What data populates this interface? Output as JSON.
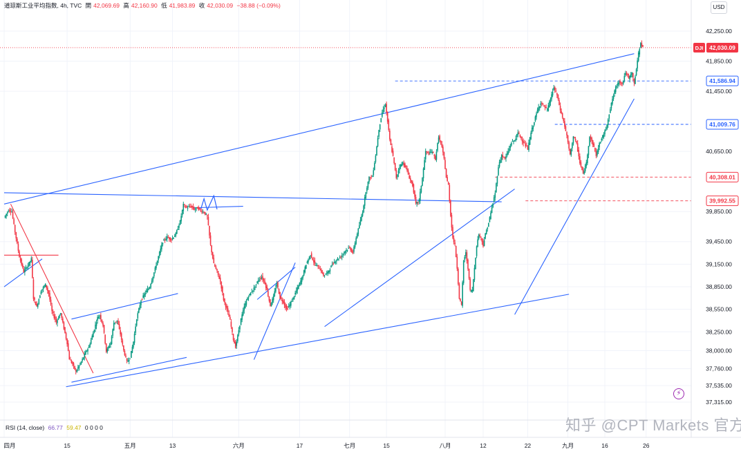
{
  "header": {
    "title": "道琼斯工业平均指数, 4h, TVC",
    "open_label": "開",
    "open": "42,069.69",
    "high_label": "高",
    "high": "42,160.90",
    "low_label": "低",
    "low": "41,983.89",
    "close_label": "收",
    "close": "42,030.09",
    "change": "−38.88 (−0.09%)"
  },
  "currency_button": "USD",
  "rsi_legend": {
    "label": "RSI (14, close)",
    "value1": "66.77",
    "value2": "59.47",
    "extra": "0 0 0 0"
  },
  "watermark": "知乎 @CPT Markets 官方",
  "watermark_icon": "lightning-icon",
  "colors": {
    "up": "#089981",
    "down": "#f23645",
    "trendline": "#2962ff",
    "downtrend": "#f23645",
    "price_tag": "#f23645",
    "level_tag": "#2962ff"
  },
  "chart_data": {
    "type": "candlestick",
    "symbol": "DJI",
    "y_range": [
      37150,
      42480
    ],
    "y_ticks": [
      {
        "value": 42250,
        "label": "42,250.00"
      },
      {
        "value": 41850,
        "label": "41,850.00"
      },
      {
        "value": 41450,
        "label": "41,450.00"
      },
      {
        "value": 40650,
        "label": "40,650.00"
      },
      {
        "value": 39850,
        "label": "39,850.00"
      },
      {
        "value": 39450,
        "label": "39,450.00"
      },
      {
        "value": 39150,
        "label": "39,150.00"
      },
      {
        "value": 38850,
        "label": "38,850.00"
      },
      {
        "value": 38550,
        "label": "38,550.00"
      },
      {
        "value": 38250,
        "label": "38,250.00"
      },
      {
        "value": 38000,
        "label": "38,000.00"
      },
      {
        "value": 37760,
        "label": "37,760.00"
      },
      {
        "value": 37535,
        "label": "37,535.00"
      },
      {
        "value": 37315,
        "label": "37,315.00"
      }
    ],
    "x_ticks": [
      {
        "t": 0,
        "label": "四月"
      },
      {
        "t": 58,
        "label": "15"
      },
      {
        "t": 116,
        "label": "五月"
      },
      {
        "t": 155,
        "label": "13"
      },
      {
        "t": 216,
        "label": "六月"
      },
      {
        "t": 272,
        "label": "17"
      },
      {
        "t": 318,
        "label": "七月"
      },
      {
        "t": 352,
        "label": "15"
      },
      {
        "t": 406,
        "label": "八月"
      },
      {
        "t": 441,
        "label": "12"
      },
      {
        "t": 482,
        "label": "22"
      },
      {
        "t": 519,
        "label": "九月"
      },
      {
        "t": 553,
        "label": "16"
      },
      {
        "t": 591,
        "label": "26"
      }
    ],
    "x_range": [
      0,
      630
    ],
    "last_price": {
      "symbol": "DJI",
      "value": 42030.09,
      "label": "42,030.09"
    },
    "price_levels": [
      {
        "value": 41586.94,
        "label": "41,586.94",
        "style": "blue",
        "from": 360
      },
      {
        "value": 41009.76,
        "label": "41,009.76",
        "style": "blue",
        "from": 507
      },
      {
        "value": 40308.01,
        "label": "40,308.01",
        "style": "red",
        "from": 452
      },
      {
        "value": 39992.55,
        "label": "39,992.55",
        "style": "red",
        "from": 480
      }
    ],
    "keypoints": [
      {
        "t": 0,
        "p": 39770
      },
      {
        "t": 4,
        "p": 39870
      },
      {
        "t": 7,
        "p": 39850
      },
      {
        "t": 10,
        "p": 39580
      },
      {
        "t": 14,
        "p": 39250
      },
      {
        "t": 18,
        "p": 39050
      },
      {
        "t": 22,
        "p": 39140
      },
      {
        "t": 25,
        "p": 39220
      },
      {
        "t": 27,
        "p": 38700
      },
      {
        "t": 30,
        "p": 38580
      },
      {
        "t": 34,
        "p": 38800
      },
      {
        "t": 38,
        "p": 38880
      },
      {
        "t": 41,
        "p": 38760
      },
      {
        "t": 44,
        "p": 38520
      },
      {
        "t": 48,
        "p": 38380
      },
      {
        "t": 52,
        "p": 38500
      },
      {
        "t": 55,
        "p": 38300
      },
      {
        "t": 58,
        "p": 38100
      },
      {
        "t": 60,
        "p": 37890
      },
      {
        "t": 63,
        "p": 37820
      },
      {
        "t": 66,
        "p": 37720
      },
      {
        "t": 69,
        "p": 37800
      },
      {
        "t": 72,
        "p": 37880
      },
      {
        "t": 75,
        "p": 37980
      },
      {
        "t": 78,
        "p": 38050
      },
      {
        "t": 82,
        "p": 38240
      },
      {
        "t": 86,
        "p": 38440
      },
      {
        "t": 88,
        "p": 38470
      },
      {
        "t": 91,
        "p": 38340
      },
      {
        "t": 94,
        "p": 37990
      },
      {
        "t": 98,
        "p": 38100
      },
      {
        "t": 101,
        "p": 38370
      },
      {
        "t": 104,
        "p": 38400
      },
      {
        "t": 107,
        "p": 38220
      },
      {
        "t": 110,
        "p": 38000
      },
      {
        "t": 113,
        "p": 37850
      },
      {
        "t": 116,
        "p": 37910
      },
      {
        "t": 119,
        "p": 38120
      },
      {
        "t": 122,
        "p": 38430
      },
      {
        "t": 126,
        "p": 38670
      },
      {
        "t": 130,
        "p": 38770
      },
      {
        "t": 134,
        "p": 38850
      },
      {
        "t": 138,
        "p": 39040
      },
      {
        "t": 142,
        "p": 39250
      },
      {
        "t": 146,
        "p": 39450
      },
      {
        "t": 150,
        "p": 39510
      },
      {
        "t": 154,
        "p": 39480
      },
      {
        "t": 158,
        "p": 39550
      },
      {
        "t": 162,
        "p": 39720
      },
      {
        "t": 165,
        "p": 39940
      },
      {
        "t": 168,
        "p": 39900
      },
      {
        "t": 172,
        "p": 39920
      },
      {
        "t": 175,
        "p": 39880
      },
      {
        "t": 178,
        "p": 39900
      },
      {
        "t": 181,
        "p": 39860
      },
      {
        "t": 184,
        "p": 39840
      },
      {
        "t": 187,
        "p": 39780
      },
      {
        "t": 190,
        "p": 39400
      },
      {
        "t": 193,
        "p": 39150
      },
      {
        "t": 196,
        "p": 39050
      },
      {
        "t": 199,
        "p": 38920
      },
      {
        "t": 202,
        "p": 38680
      },
      {
        "t": 205,
        "p": 38550
      },
      {
        "t": 208,
        "p": 38400
      },
      {
        "t": 211,
        "p": 38150
      },
      {
        "t": 213,
        "p": 38050
      },
      {
        "t": 215,
        "p": 38200
      },
      {
        "t": 218,
        "p": 38420
      },
      {
        "t": 221,
        "p": 38580
      },
      {
        "t": 224,
        "p": 38700
      },
      {
        "t": 227,
        "p": 38770
      },
      {
        "t": 230,
        "p": 38830
      },
      {
        "t": 234,
        "p": 38940
      },
      {
        "t": 237,
        "p": 38980
      },
      {
        "t": 240,
        "p": 38900
      },
      {
        "t": 242,
        "p": 38800
      },
      {
        "t": 245,
        "p": 38600
      },
      {
        "t": 248,
        "p": 38720
      },
      {
        "t": 251,
        "p": 38900
      },
      {
        "t": 254,
        "p": 38700
      },
      {
        "t": 257,
        "p": 38650
      },
      {
        "t": 260,
        "p": 38550
      },
      {
        "t": 263,
        "p": 38610
      },
      {
        "t": 266,
        "p": 38700
      },
      {
        "t": 270,
        "p": 38830
      },
      {
        "t": 274,
        "p": 38960
      },
      {
        "t": 278,
        "p": 39150
      },
      {
        "t": 282,
        "p": 39280
      },
      {
        "t": 286,
        "p": 39150
      },
      {
        "t": 290,
        "p": 39100
      },
      {
        "t": 294,
        "p": 39000
      },
      {
        "t": 298,
        "p": 39040
      },
      {
        "t": 302,
        "p": 39150
      },
      {
        "t": 306,
        "p": 39210
      },
      {
        "t": 310,
        "p": 39250
      },
      {
        "t": 314,
        "p": 39330
      },
      {
        "t": 318,
        "p": 39370
      },
      {
        "t": 321,
        "p": 39300
      },
      {
        "t": 324,
        "p": 39500
      },
      {
        "t": 327,
        "p": 39670
      },
      {
        "t": 330,
        "p": 39850
      },
      {
        "t": 333,
        "p": 40120
      },
      {
        "t": 336,
        "p": 40300
      },
      {
        "t": 339,
        "p": 40320
      },
      {
        "t": 342,
        "p": 40600
      },
      {
        "t": 345,
        "p": 40950
      },
      {
        "t": 348,
        "p": 41170
      },
      {
        "t": 351,
        "p": 41280
      },
      {
        "t": 353,
        "p": 41050
      },
      {
        "t": 355,
        "p": 40800
      },
      {
        "t": 358,
        "p": 40580
      },
      {
        "t": 361,
        "p": 40300
      },
      {
        "t": 364,
        "p": 40450
      },
      {
        "t": 367,
        "p": 40500
      },
      {
        "t": 370,
        "p": 40430
      },
      {
        "t": 373,
        "p": 40300
      },
      {
        "t": 376,
        "p": 40200
      },
      {
        "t": 379,
        "p": 39950
      },
      {
        "t": 382,
        "p": 40000
      },
      {
        "t": 385,
        "p": 40300
      },
      {
        "t": 388,
        "p": 40650
      },
      {
        "t": 391,
        "p": 40620
      },
      {
        "t": 394,
        "p": 40650
      },
      {
        "t": 397,
        "p": 40550
      },
      {
        "t": 400,
        "p": 40850
      },
      {
        "t": 403,
        "p": 40700
      },
      {
        "t": 405,
        "p": 40550
      },
      {
        "t": 407,
        "p": 40300
      },
      {
        "t": 409,
        "p": 40200
      },
      {
        "t": 411,
        "p": 39800
      },
      {
        "t": 413,
        "p": 39500
      },
      {
        "t": 415,
        "p": 39400
      },
      {
        "t": 417,
        "p": 39100
      },
      {
        "t": 419,
        "p": 38700
      },
      {
        "t": 421,
        "p": 38600
      },
      {
        "t": 423,
        "p": 39200
      },
      {
        "t": 425,
        "p": 39300
      },
      {
        "t": 427,
        "p": 39100
      },
      {
        "t": 429,
        "p": 38800
      },
      {
        "t": 431,
        "p": 38800
      },
      {
        "t": 433,
        "p": 39100
      },
      {
        "t": 435,
        "p": 39400
      },
      {
        "t": 437,
        "p": 39550
      },
      {
        "t": 439,
        "p": 39500
      },
      {
        "t": 441,
        "p": 39400
      },
      {
        "t": 443,
        "p": 39550
      },
      {
        "t": 446,
        "p": 39700
      },
      {
        "t": 449,
        "p": 39900
      },
      {
        "t": 452,
        "p": 40100
      },
      {
        "t": 455,
        "p": 40450
      },
      {
        "t": 458,
        "p": 40600
      },
      {
        "t": 461,
        "p": 40550
      },
      {
        "t": 464,
        "p": 40650
      },
      {
        "t": 467,
        "p": 40770
      },
      {
        "t": 470,
        "p": 40800
      },
      {
        "t": 473,
        "p": 40900
      },
      {
        "t": 476,
        "p": 40820
      },
      {
        "t": 479,
        "p": 40750
      },
      {
        "t": 482,
        "p": 40680
      },
      {
        "t": 485,
        "p": 40900
      },
      {
        "t": 488,
        "p": 41050
      },
      {
        "t": 491,
        "p": 41200
      },
      {
        "t": 494,
        "p": 41300
      },
      {
        "t": 497,
        "p": 41250
      },
      {
        "t": 500,
        "p": 41200
      },
      {
        "t": 503,
        "p": 41350
      },
      {
        "t": 506,
        "p": 41500
      },
      {
        "t": 509,
        "p": 41400
      },
      {
        "t": 512,
        "p": 41200
      },
      {
        "t": 515,
        "p": 41050
      },
      {
        "t": 518,
        "p": 40850
      },
      {
        "t": 521,
        "p": 40600
      },
      {
        "t": 524,
        "p": 40850
      },
      {
        "t": 527,
        "p": 40750
      },
      {
        "t": 530,
        "p": 40500
      },
      {
        "t": 533,
        "p": 40350
      },
      {
        "t": 536,
        "p": 40500
      },
      {
        "t": 539,
        "p": 40850
      },
      {
        "t": 542,
        "p": 40750
      },
      {
        "t": 545,
        "p": 40600
      },
      {
        "t": 548,
        "p": 40750
      },
      {
        "t": 551,
        "p": 40850
      },
      {
        "t": 554,
        "p": 40950
      },
      {
        "t": 557,
        "p": 41150
      },
      {
        "t": 560,
        "p": 41350
      },
      {
        "t": 563,
        "p": 41500
      },
      {
        "t": 566,
        "p": 41580
      },
      {
        "t": 569,
        "p": 41550
      },
      {
        "t": 572,
        "p": 41700
      },
      {
        "t": 575,
        "p": 41620
      },
      {
        "t": 578,
        "p": 41700
      },
      {
        "t": 580,
        "p": 41550
      },
      {
        "t": 582,
        "p": 41750
      },
      {
        "t": 584,
        "p": 41950
      },
      {
        "t": 586,
        "p": 42100
      },
      {
        "t": 588,
        "p": 42030
      }
    ],
    "drawings": [
      {
        "kind": "line",
        "color": "blue",
        "t1": 0,
        "p1": 39950,
        "t2": 580,
        "p2": 41950
      },
      {
        "kind": "line",
        "color": "blue",
        "t1": 0,
        "p1": 40100,
        "t2": 458,
        "p2": 39980
      },
      {
        "kind": "line",
        "color": "blue",
        "t1": 57,
        "p1": 37520,
        "t2": 520,
        "p2": 38750
      },
      {
        "kind": "line",
        "color": "blue",
        "t1": 0,
        "p1": 38850,
        "t2": 35,
        "p2": 39220
      },
      {
        "kind": "line",
        "color": "blue",
        "t1": 62,
        "p1": 37580,
        "t2": 168,
        "p2": 37910
      },
      {
        "kind": "line",
        "color": "blue",
        "t1": 62,
        "p1": 38420,
        "t2": 160,
        "p2": 38760
      },
      {
        "kind": "line",
        "color": "blue",
        "t1": 174,
        "p1": 39900,
        "t2": 220,
        "p2": 39920
      },
      {
        "kind": "line",
        "color": "blue",
        "t1": 230,
        "p1": 37880,
        "t2": 268,
        "p2": 39170
      },
      {
        "kind": "line",
        "color": "blue",
        "t1": 233,
        "p1": 38680,
        "t2": 268,
        "p2": 39110
      },
      {
        "kind": "line",
        "color": "blue",
        "t1": 295,
        "p1": 38320,
        "t2": 470,
        "p2": 40150
      },
      {
        "kind": "line",
        "color": "blue",
        "t1": 470,
        "p1": 38480,
        "t2": 580,
        "p2": 41350
      },
      {
        "kind": "line",
        "color": "red",
        "t1": 6,
        "p1": 39950,
        "t2": 82,
        "p2": 37700
      },
      {
        "kind": "line",
        "color": "red",
        "t1": 0,
        "p1": 39270,
        "t2": 50,
        "p2": 39270
      }
    ],
    "pattern_w": {
      "color": "blue",
      "points": [
        {
          "t": 181,
          "p": 39880
        },
        {
          "t": 184,
          "p": 40020
        },
        {
          "t": 187,
          "p": 39870
        },
        {
          "t": 193,
          "p": 40060
        },
        {
          "t": 196,
          "p": 39880
        }
      ]
    }
  }
}
